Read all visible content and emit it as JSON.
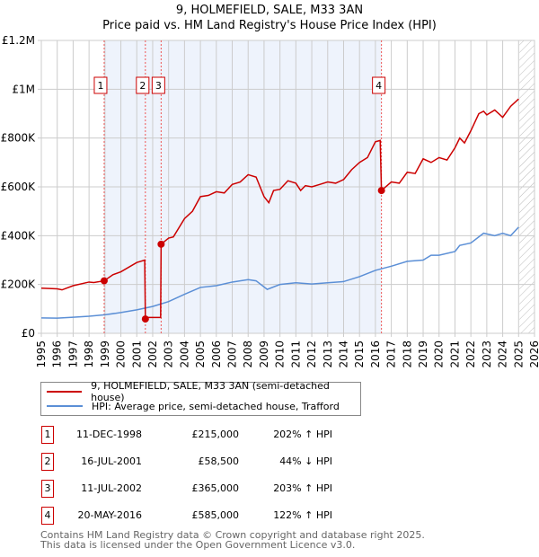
{
  "title_line1": "9, HOLMEFIELD, SALE, M33 3AN",
  "title_line2": "Price paid vs. HM Land Registry's House Price Index (HPI)",
  "chart_data": {
    "type": "line",
    "title": "Price paid vs. HM Land Registry's House Price Index (HPI)",
    "ylim": [
      0,
      1200000
    ],
    "xlim": [
      1995,
      2026
    ],
    "y_ticks": [
      {
        "v": 0,
        "label": "£0"
      },
      {
        "v": 200000,
        "label": "£200K"
      },
      {
        "v": 400000,
        "label": "£400K"
      },
      {
        "v": 600000,
        "label": "£600K"
      },
      {
        "v": 800000,
        "label": "£800K"
      },
      {
        "v": 1000000,
        "label": "£1M"
      },
      {
        "v": 1200000,
        "label": "£1.2M"
      }
    ],
    "x_ticks": [
      "1995",
      "1996",
      "1997",
      "1998",
      "1999",
      "2000",
      "2001",
      "2002",
      "2003",
      "2004",
      "2005",
      "2006",
      "2007",
      "2008",
      "2009",
      "2010",
      "2011",
      "2012",
      "2013",
      "2014",
      "2015",
      "2016",
      "2017",
      "2018",
      "2019",
      "2020",
      "2021",
      "2022",
      "2023",
      "2024",
      "2025",
      "2026"
    ],
    "grid": true,
    "shaded_range": [
      1998.95,
      2016.38
    ],
    "hatched_from": 2025.05,
    "series": [
      {
        "name": "9, HOLMEFIELD, SALE, M33 3AN (semi-detached house)",
        "color": "#cc0000",
        "points": [
          [
            1995,
            185000
          ],
          [
            1996,
            182000
          ],
          [
            1996.3,
            178000
          ],
          [
            1997,
            195000
          ],
          [
            1998,
            210000
          ],
          [
            1998.3,
            208000
          ],
          [
            1998.95,
            215000
          ],
          [
            1999.5,
            240000
          ],
          [
            2000,
            252000
          ],
          [
            2001,
            290000
          ],
          [
            2001.5,
            300000
          ],
          [
            2001.54,
            58500
          ],
          [
            2001.6,
            65000
          ],
          [
            2002.5,
            65000
          ],
          [
            2002.53,
            365000
          ],
          [
            2003,
            390000
          ],
          [
            2003.3,
            395000
          ],
          [
            2004,
            470000
          ],
          [
            2004.5,
            500000
          ],
          [
            2005,
            560000
          ],
          [
            2005.5,
            565000
          ],
          [
            2006,
            580000
          ],
          [
            2006.5,
            575000
          ],
          [
            2007,
            610000
          ],
          [
            2007.5,
            620000
          ],
          [
            2008,
            650000
          ],
          [
            2008.5,
            640000
          ],
          [
            2009,
            560000
          ],
          [
            2009.3,
            535000
          ],
          [
            2009.6,
            585000
          ],
          [
            2010,
            590000
          ],
          [
            2010.5,
            625000
          ],
          [
            2011,
            615000
          ],
          [
            2011.3,
            585000
          ],
          [
            2011.6,
            605000
          ],
          [
            2012,
            600000
          ],
          [
            2012.5,
            610000
          ],
          [
            2013,
            620000
          ],
          [
            2013.5,
            615000
          ],
          [
            2014,
            630000
          ],
          [
            2014.5,
            670000
          ],
          [
            2015,
            700000
          ],
          [
            2015.5,
            720000
          ],
          [
            2016,
            785000
          ],
          [
            2016.3,
            790000
          ],
          [
            2016.38,
            585000
          ],
          [
            2017,
            620000
          ],
          [
            2017.5,
            615000
          ],
          [
            2018,
            660000
          ],
          [
            2018.5,
            655000
          ],
          [
            2019,
            715000
          ],
          [
            2019.5,
            700000
          ],
          [
            2020,
            720000
          ],
          [
            2020.5,
            710000
          ],
          [
            2021,
            760000
          ],
          [
            2021.3,
            800000
          ],
          [
            2021.6,
            780000
          ],
          [
            2022,
            830000
          ],
          [
            2022.5,
            900000
          ],
          [
            2022.8,
            910000
          ],
          [
            2023,
            895000
          ],
          [
            2023.5,
            915000
          ],
          [
            2024,
            885000
          ],
          [
            2024.5,
            930000
          ],
          [
            2025,
            960000
          ]
        ]
      },
      {
        "name": "HPI: Average price, semi-detached house, Trafford",
        "color": "#5b8fd6",
        "points": [
          [
            1995,
            63000
          ],
          [
            1996,
            62000
          ],
          [
            1997,
            66000
          ],
          [
            1998,
            70000
          ],
          [
            1999,
            76000
          ],
          [
            2000,
            85000
          ],
          [
            2001,
            96000
          ],
          [
            2002,
            110000
          ],
          [
            2003,
            130000
          ],
          [
            2004,
            160000
          ],
          [
            2005,
            188000
          ],
          [
            2006,
            195000
          ],
          [
            2007,
            210000
          ],
          [
            2008,
            220000
          ],
          [
            2008.5,
            215000
          ],
          [
            2009.2,
            180000
          ],
          [
            2010,
            200000
          ],
          [
            2011,
            207000
          ],
          [
            2012,
            202000
          ],
          [
            2013,
            207000
          ],
          [
            2014,
            212000
          ],
          [
            2015,
            232000
          ],
          [
            2016,
            258000
          ],
          [
            2017,
            275000
          ],
          [
            2018,
            295000
          ],
          [
            2019,
            300000
          ],
          [
            2019.5,
            320000
          ],
          [
            2020,
            320000
          ],
          [
            2021,
            335000
          ],
          [
            2021.3,
            360000
          ],
          [
            2022,
            370000
          ],
          [
            2022.8,
            410000
          ],
          [
            2023.5,
            400000
          ],
          [
            2024,
            410000
          ],
          [
            2024.5,
            400000
          ],
          [
            2025,
            435000
          ]
        ]
      }
    ],
    "sales": [
      {
        "id": "1",
        "x": 1998.95,
        "value": 215000
      },
      {
        "id": "2",
        "x": 2001.54,
        "value": 58500
      },
      {
        "id": "3",
        "x": 2002.53,
        "value": 365000
      },
      {
        "id": "4",
        "x": 2016.38,
        "value": 585000
      }
    ]
  },
  "legend": {
    "property": "9, HOLMEFIELD, SALE, M33 3AN (semi-detached house)",
    "hpi": "HPI: Average price, semi-detached house, Trafford"
  },
  "transactions": [
    {
      "num": "1",
      "date": "11-DEC-1998",
      "price": "£215,000",
      "hpi": "202% ↑ HPI"
    },
    {
      "num": "2",
      "date": "16-JUL-2001",
      "price": "£58,500",
      "hpi": "44% ↓ HPI"
    },
    {
      "num": "3",
      "date": "11-JUL-2002",
      "price": "£365,000",
      "hpi": "203% ↑ HPI"
    },
    {
      "num": "4",
      "date": "20-MAY-2016",
      "price": "£585,000",
      "hpi": "122% ↑ HPI"
    }
  ],
  "footer_line1": "Contains HM Land Registry data © Crown copyright and database right 2025.",
  "footer_line2": "This data is licensed under the Open Government Licence v3.0."
}
